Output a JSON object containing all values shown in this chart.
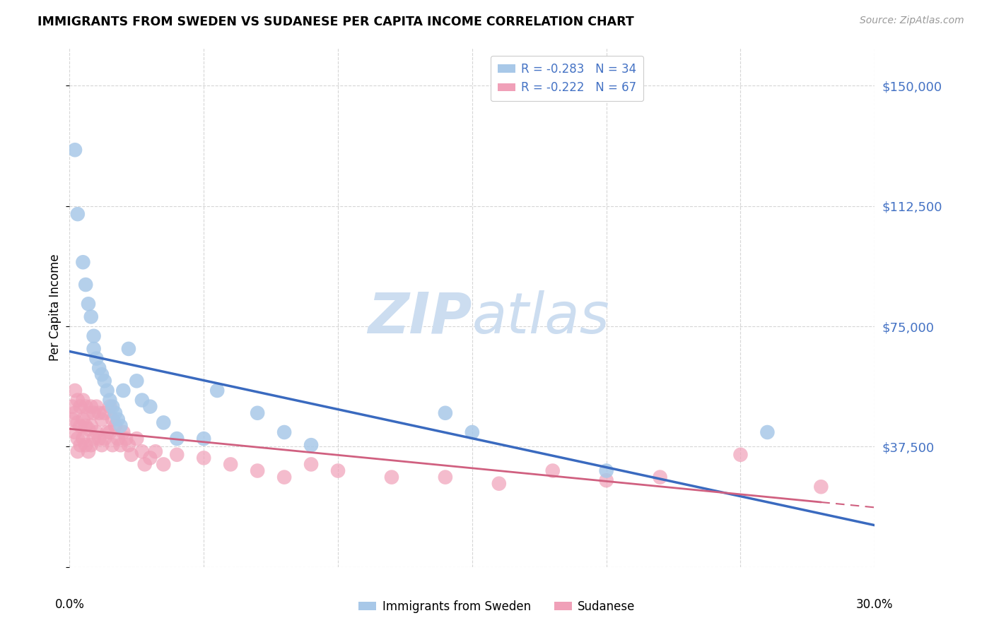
{
  "title": "IMMIGRANTS FROM SWEDEN VS SUDANESE PER CAPITA INCOME CORRELATION CHART",
  "source": "Source: ZipAtlas.com",
  "ylabel": "Per Capita Income",
  "xlim": [
    0,
    0.3
  ],
  "ylim": [
    0,
    162000
  ],
  "yticks": [
    37500,
    75000,
    112500,
    150000
  ],
  "ytick_labels": [
    "$37,500",
    "$75,000",
    "$112,500",
    "$150,000"
  ],
  "xticks": [
    0.0,
    0.05,
    0.1,
    0.15,
    0.2,
    0.25,
    0.3
  ],
  "series1_label": "Immigrants from Sweden",
  "series1_color": "#a8c8e8",
  "series1_line_color": "#3a6abf",
  "series2_label": "Sudanese",
  "series2_color": "#f0a0b8",
  "series2_line_color": "#d06080",
  "background_color": "#ffffff",
  "grid_color": "#cccccc",
  "watermark_zip": "ZIP",
  "watermark_atlas": "atlas",
  "r1": -0.283,
  "n1": 34,
  "r2": -0.222,
  "n2": 67,
  "sweden_x": [
    0.002,
    0.003,
    0.005,
    0.006,
    0.007,
    0.008,
    0.009,
    0.009,
    0.01,
    0.011,
    0.012,
    0.013,
    0.014,
    0.015,
    0.016,
    0.017,
    0.018,
    0.019,
    0.02,
    0.022,
    0.025,
    0.027,
    0.03,
    0.035,
    0.04,
    0.05,
    0.055,
    0.07,
    0.08,
    0.09,
    0.14,
    0.15,
    0.2,
    0.26
  ],
  "sweden_y": [
    130000,
    110000,
    95000,
    88000,
    82000,
    78000,
    72000,
    68000,
    65000,
    62000,
    60000,
    58000,
    55000,
    52000,
    50000,
    48000,
    46000,
    44000,
    55000,
    68000,
    58000,
    52000,
    50000,
    45000,
    40000,
    40000,
    55000,
    48000,
    42000,
    38000,
    48000,
    42000,
    30000,
    42000
  ],
  "sudan_x": [
    0.001,
    0.001,
    0.002,
    0.002,
    0.002,
    0.003,
    0.003,
    0.003,
    0.003,
    0.004,
    0.004,
    0.004,
    0.005,
    0.005,
    0.005,
    0.006,
    0.006,
    0.006,
    0.007,
    0.007,
    0.007,
    0.008,
    0.008,
    0.008,
    0.009,
    0.009,
    0.01,
    0.01,
    0.011,
    0.011,
    0.012,
    0.012,
    0.013,
    0.013,
    0.014,
    0.015,
    0.015,
    0.016,
    0.016,
    0.017,
    0.018,
    0.019,
    0.02,
    0.021,
    0.022,
    0.023,
    0.025,
    0.027,
    0.028,
    0.03,
    0.032,
    0.035,
    0.04,
    0.05,
    0.06,
    0.07,
    0.08,
    0.09,
    0.1,
    0.12,
    0.14,
    0.16,
    0.18,
    0.2,
    0.22,
    0.25,
    0.28
  ],
  "sudan_y": [
    50000,
    46000,
    55000,
    48000,
    42000,
    52000,
    45000,
    40000,
    36000,
    50000,
    44000,
    38000,
    52000,
    46000,
    40000,
    50000,
    44000,
    38000,
    48000,
    43000,
    36000,
    50000,
    44000,
    38000,
    48000,
    40000,
    50000,
    42000,
    48000,
    40000,
    46000,
    38000,
    48000,
    40000,
    42000,
    50000,
    42000,
    46000,
    38000,
    44000,
    40000,
    38000,
    42000,
    40000,
    38000,
    35000,
    40000,
    36000,
    32000,
    34000,
    36000,
    32000,
    35000,
    34000,
    32000,
    30000,
    28000,
    32000,
    30000,
    28000,
    28000,
    26000,
    30000,
    27000,
    28000,
    35000,
    25000
  ]
}
